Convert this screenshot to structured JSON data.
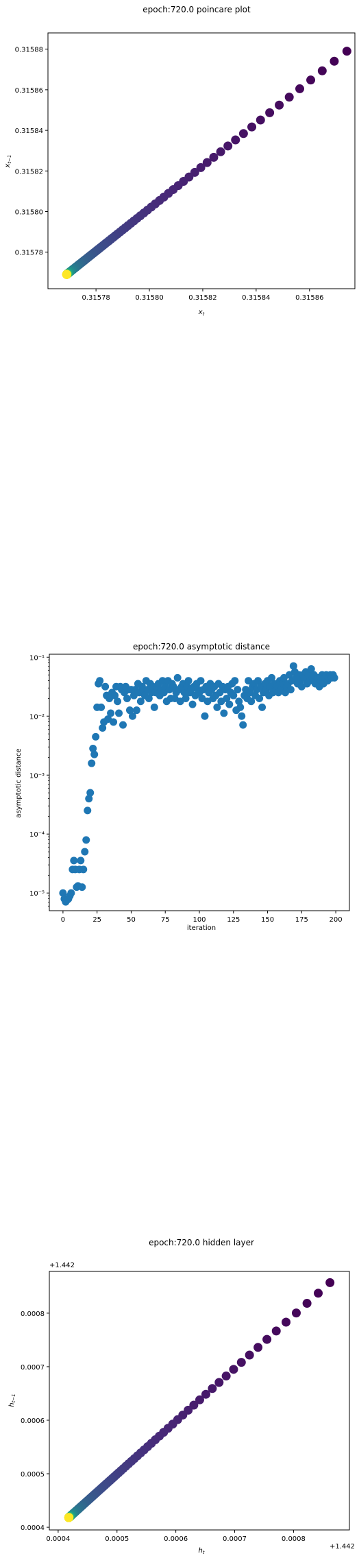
{
  "chart_data": [
    {
      "type": "scatter",
      "title": "epoch:720.0 poincare plot",
      "xlabel": "x_t",
      "ylabel": "x_{t-1}",
      "xlim": [
        0.315762,
        0.315877
      ],
      "ylim": [
        0.315762,
        0.315888
      ],
      "xticks": [
        {
          "v": 0.31578,
          "label": "0.31578"
        },
        {
          "v": 0.3158,
          "label": "0.31580"
        },
        {
          "v": 0.31582,
          "label": "0.31582"
        },
        {
          "v": 0.31584,
          "label": "0.31584"
        },
        {
          "v": 0.31586,
          "label": "0.31586"
        }
      ],
      "yticks": [
        {
          "v": 0.31578,
          "label": "0.31578"
        },
        {
          "v": 0.3158,
          "label": "0.31580"
        },
        {
          "v": 0.31582,
          "label": "0.31582"
        },
        {
          "v": 0.31584,
          "label": "0.31584"
        },
        {
          "v": 0.31586,
          "label": "0.31586"
        },
        {
          "v": 0.31588,
          "label": "0.31588"
        }
      ],
      "colormap": "viridis",
      "grid": false,
      "points": {
        "x_start": 0.315769,
        "x_end": 0.315874,
        "y_start": 0.315769,
        "y_end": 0.315879,
        "count": 200,
        "spacing": "geometric convergence toward (0.315769, 0.315769)",
        "color": "viridis by iteration: dark purple far, yellow at convergence"
      }
    },
    {
      "type": "scatter",
      "title": "epoch:720.0 asymptotic distance",
      "xlabel": "iteration",
      "ylabel": "asymptotic distance",
      "xlim": [
        -10,
        210
      ],
      "ylim_log10": [
        -5.3,
        -0.95
      ],
      "yscale": "log",
      "xticks": [
        {
          "v": 0,
          "label": "0"
        },
        {
          "v": 25,
          "label": "25"
        },
        {
          "v": 50,
          "label": "50"
        },
        {
          "v": 75,
          "label": "75"
        },
        {
          "v": 100,
          "label": "100"
        },
        {
          "v": 125,
          "label": "125"
        },
        {
          "v": 150,
          "label": "150"
        },
        {
          "v": 175,
          "label": "175"
        },
        {
          "v": 200,
          "label": "200"
        }
      ],
      "yticks": [
        {
          "v": -5,
          "label": "10⁻⁵"
        },
        {
          "v": -4,
          "label": "10⁻⁴"
        },
        {
          "v": -3,
          "label": "10⁻³"
        },
        {
          "v": -2,
          "label": "10⁻²"
        },
        {
          "v": -1,
          "label": "10⁻¹"
        }
      ],
      "color": "#1f77b4",
      "grid": false,
      "points_log10_y": [
        [
          0,
          -5.0
        ],
        [
          1,
          -5.1
        ],
        [
          2,
          -5.15
        ],
        [
          3,
          -5.12
        ],
        [
          4,
          -5.1
        ],
        [
          5,
          -5.05
        ],
        [
          6,
          -5.0
        ],
        [
          7,
          -4.6
        ],
        [
          8,
          -4.45
        ],
        [
          9,
          -4.6
        ],
        [
          10,
          -4.9
        ],
        [
          11,
          -4.88
        ],
        [
          12,
          -4.6
        ],
        [
          13,
          -4.45
        ],
        [
          14,
          -4.9
        ],
        [
          15,
          -4.6
        ],
        [
          16,
          -4.3
        ],
        [
          17,
          -4.1
        ],
        [
          18,
          -3.6
        ],
        [
          19,
          -3.4
        ],
        [
          20,
          -3.3
        ],
        [
          21,
          -2.8
        ],
        [
          22,
          -2.55
        ],
        [
          23,
          -2.65
        ],
        [
          24,
          -2.35
        ],
        [
          25,
          -1.85
        ],
        [
          26,
          -1.45
        ],
        [
          27,
          -1.4
        ],
        [
          28,
          -1.85
        ],
        [
          29,
          -2.2
        ],
        [
          30,
          -2.1
        ],
        [
          31,
          -1.5
        ],
        [
          32,
          -1.65
        ],
        [
          33,
          -2.05
        ],
        [
          34,
          -1.7
        ],
        [
          35,
          -1.95
        ],
        [
          36,
          -1.6
        ],
        [
          37,
          -2.1
        ],
        [
          38,
          -1.65
        ],
        [
          39,
          -1.5
        ],
        [
          40,
          -1.75
        ],
        [
          41,
          -1.95
        ],
        [
          42,
          -1.5
        ],
        [
          43,
          -1.55
        ],
        [
          44,
          -2.15
        ],
        [
          45,
          -1.6
        ],
        [
          46,
          -1.5
        ],
        [
          47,
          -1.7
        ],
        [
          48,
          -1.55
        ],
        [
          49,
          -1.9
        ],
        [
          50,
          -1.55
        ],
        [
          51,
          -2.0
        ],
        [
          52,
          -1.65
        ],
        [
          53,
          -1.55
        ],
        [
          54,
          -1.9
        ],
        [
          55,
          -1.45
        ],
        [
          56,
          -1.6
        ],
        [
          57,
          -1.75
        ],
        [
          58,
          -1.5
        ],
        [
          59,
          -1.55
        ],
        [
          60,
          -1.65
        ],
        [
          61,
          -1.4
        ],
        [
          62,
          -1.55
        ],
        [
          63,
          -1.7
        ],
        [
          64,
          -1.45
        ],
        [
          65,
          -1.6
        ],
        [
          66,
          -1.5
        ],
        [
          67,
          -1.85
        ],
        [
          68,
          -1.6
        ],
        [
          69,
          -1.5
        ],
        [
          70,
          -1.45
        ],
        [
          71,
          -1.65
        ],
        [
          72,
          -1.55
        ],
        [
          73,
          -1.4
        ],
        [
          74,
          -1.6
        ],
        [
          75,
          -1.5
        ],
        [
          76,
          -1.75
        ],
        [
          77,
          -1.4
        ],
        [
          78,
          -1.55
        ],
        [
          79,
          -1.7
        ],
        [
          80,
          -1.45
        ],
        [
          81,
          -1.5
        ],
        [
          82,
          -1.7
        ],
        [
          83,
          -1.6
        ],
        [
          84,
          -1.35
        ],
        [
          85,
          -1.55
        ],
        [
          86,
          -1.75
        ],
        [
          87,
          -1.5
        ],
        [
          88,
          -1.45
        ],
        [
          89,
          -1.6
        ],
        [
          90,
          -1.7
        ],
        [
          91,
          -1.5
        ],
        [
          92,
          -1.4
        ],
        [
          93,
          -1.6
        ],
        [
          94,
          -1.55
        ],
        [
          95,
          -1.8
        ],
        [
          96,
          -1.5
        ],
        [
          97,
          -1.65
        ],
        [
          98,
          -1.45
        ],
        [
          99,
          -1.55
        ],
        [
          100,
          -1.6
        ],
        [
          101,
          -1.4
        ],
        [
          102,
          -1.7
        ],
        [
          103,
          -1.55
        ],
        [
          104,
          -2.0
        ],
        [
          105,
          -1.5
        ],
        [
          106,
          -1.75
        ],
        [
          107,
          -1.6
        ],
        [
          108,
          -1.45
        ],
        [
          109,
          -1.55
        ],
        [
          110,
          -1.7
        ],
        [
          111,
          -1.5
        ],
        [
          112,
          -1.65
        ],
        [
          113,
          -1.85
        ],
        [
          114,
          -1.45
        ],
        [
          115,
          -1.6
        ],
        [
          116,
          -1.75
        ],
        [
          117,
          -1.5
        ],
        [
          118,
          -1.95
        ],
        [
          119,
          -1.55
        ],
        [
          120,
          -1.7
        ],
        [
          121,
          -1.5
        ],
        [
          122,
          -1.8
        ],
        [
          123,
          -1.6
        ],
        [
          124,
          -1.45
        ],
        [
          125,
          -1.65
        ],
        [
          126,
          -1.4
        ],
        [
          127,
          -1.9
        ],
        [
          128,
          -1.55
        ],
        [
          129,
          -1.75
        ],
        [
          130,
          -1.85
        ],
        [
          131,
          -2.0
        ],
        [
          132,
          -2.15
        ],
        [
          133,
          -1.65
        ],
        [
          134,
          -1.55
        ],
        [
          135,
          -1.7
        ],
        [
          136,
          -1.4
        ],
        [
          137,
          -1.6
        ],
        [
          138,
          -1.75
        ],
        [
          139,
          -1.5
        ],
        [
          140,
          -1.45
        ],
        [
          141,
          -1.65
        ],
        [
          142,
          -1.55
        ],
        [
          143,
          -1.4
        ],
        [
          144,
          -1.7
        ],
        [
          145,
          -1.5
        ],
        [
          146,
          -1.85
        ],
        [
          147,
          -1.6
        ],
        [
          148,
          -1.45
        ],
        [
          149,
          -1.55
        ],
        [
          150,
          -1.4
        ],
        [
          151,
          -1.65
        ],
        [
          152,
          -1.5
        ],
        [
          153,
          -1.35
        ],
        [
          154,
          -1.6
        ],
        [
          155,
          -1.45
        ],
        [
          156,
          -1.55
        ],
        [
          157,
          -1.5
        ],
        [
          158,
          -1.6
        ],
        [
          159,
          -1.4
        ],
        [
          160,
          -1.55
        ],
        [
          161,
          -1.45
        ],
        [
          162,
          -1.35
        ],
        [
          163,
          -1.6
        ],
        [
          164,
          -1.5
        ],
        [
          165,
          -1.45
        ],
        [
          166,
          -1.3
        ],
        [
          167,
          -1.55
        ],
        [
          168,
          -1.4
        ],
        [
          169,
          -1.15
        ],
        [
          170,
          -1.25
        ],
        [
          171,
          -1.35
        ],
        [
          172,
          -1.45
        ],
        [
          173,
          -1.3
        ],
        [
          174,
          -1.4
        ],
        [
          175,
          -1.5
        ],
        [
          176,
          -1.3
        ],
        [
          177,
          -1.35
        ],
        [
          178,
          -1.25
        ],
        [
          179,
          -1.45
        ],
        [
          180,
          -1.3
        ],
        [
          181,
          -1.4
        ],
        [
          182,
          -1.2
        ],
        [
          183,
          -1.35
        ],
        [
          184,
          -1.3
        ],
        [
          185,
          -1.45
        ],
        [
          186,
          -1.4
        ],
        [
          187,
          -1.35
        ],
        [
          188,
          -1.5
        ],
        [
          189,
          -1.4
        ],
        [
          190,
          -1.3
        ],
        [
          191,
          -1.45
        ],
        [
          192,
          -1.35
        ],
        [
          193,
          -1.3
        ],
        [
          194,
          -1.4
        ],
        [
          195,
          -1.35
        ],
        [
          196,
          -1.3
        ],
        [
          197,
          -1.35
        ],
        [
          198,
          -1.3
        ],
        [
          199,
          -1.35
        ]
      ]
    },
    {
      "type": "scatter",
      "title": "epoch:720.0 hidden layer",
      "xlabel": "h_t",
      "ylabel": "h_{t-1}",
      "x_offset_label": "+1.442",
      "y_offset_label": "+1.442",
      "xlim": [
        0.000385,
        0.000895
      ],
      "ylim": [
        0.000395,
        0.000878
      ],
      "xticks": [
        {
          "v": 0.0004,
          "label": "0.0004"
        },
        {
          "v": 0.0005,
          "label": "0.0005"
        },
        {
          "v": 0.0006,
          "label": "0.0006"
        },
        {
          "v": 0.0007,
          "label": "0.0007"
        },
        {
          "v": 0.0008,
          "label": "0.0008"
        }
      ],
      "yticks": [
        {
          "v": 0.0004,
          "label": "0.0004"
        },
        {
          "v": 0.0005,
          "label": "0.0005"
        },
        {
          "v": 0.0006,
          "label": "0.0006"
        },
        {
          "v": 0.0007,
          "label": "0.0007"
        },
        {
          "v": 0.0008,
          "label": "0.0008"
        }
      ],
      "colormap": "viridis",
      "grid": false,
      "points": {
        "x_start": 0.000418,
        "x_end": 0.000862,
        "y_start": 0.000418,
        "y_end": 0.000857,
        "count": 200,
        "spacing": "geometric convergence toward (0.000418, 0.000418)",
        "color": "viridis by iteration: dark purple far, yellow at convergence"
      }
    }
  ]
}
